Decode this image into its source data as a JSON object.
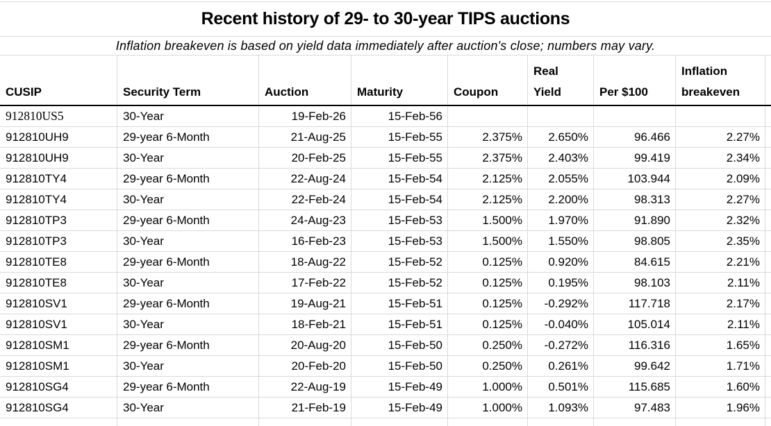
{
  "colors": {
    "background": "#ffffff",
    "text": "#000000",
    "gridline": "#d9d9d9",
    "header_rule": "#000000"
  },
  "chart_data": {
    "type": "table",
    "title": "Recent history of 29- to 30-year TIPS auctions",
    "subtitle": "Inflation breakeven is based on yield data immediately after auction's close; numbers may vary.",
    "columns": [
      {
        "id": "cusip",
        "label": "CUSIP",
        "align": "left"
      },
      {
        "id": "security-term",
        "label": "Security Term",
        "align": "left"
      },
      {
        "id": "auction",
        "label": "Auction",
        "align": "left",
        "cell_align": "right"
      },
      {
        "id": "maturity",
        "label": "Maturity",
        "align": "left",
        "cell_align": "right"
      },
      {
        "id": "coupon",
        "label": "Coupon",
        "align": "left",
        "cell_align": "right"
      },
      {
        "id": "real-yield",
        "label": "Real Yield",
        "label_lines": [
          "Real",
          "Yield"
        ],
        "align": "left",
        "cell_align": "right"
      },
      {
        "id": "per-100",
        "label": "Per $100",
        "align": "left",
        "cell_align": "right"
      },
      {
        "id": "inflation-breakeven",
        "label": "Inflation breakeven",
        "label_lines": [
          "Inflation",
          "breakeven"
        ],
        "align": "left",
        "cell_align": "right"
      }
    ],
    "rows": [
      [
        "912810US5",
        "30-Year",
        "19-Feb-26",
        "15-Feb-56",
        "",
        "",
        "",
        ""
      ],
      [
        "912810UH9",
        "29-year 6-Month",
        "21-Aug-25",
        "15-Feb-55",
        "2.375%",
        "2.650%",
        "96.466",
        "2.27%"
      ],
      [
        "912810UH9",
        "30-Year",
        "20-Feb-25",
        "15-Feb-55",
        "2.375%",
        "2.403%",
        "99.419",
        "2.34%"
      ],
      [
        "912810TY4",
        "29-year 6-Month",
        "22-Aug-24",
        "15-Feb-54",
        "2.125%",
        "2.055%",
        "103.944",
        "2.09%"
      ],
      [
        "912810TY4",
        "30-Year",
        "22-Feb-24",
        "15-Feb-54",
        "2.125%",
        "2.200%",
        "98.313",
        "2.27%"
      ],
      [
        "912810TP3",
        "29-year 6-Month",
        "24-Aug-23",
        "15-Feb-53",
        "1.500%",
        "1.970%",
        "91.890",
        "2.32%"
      ],
      [
        "912810TP3",
        "30-Year",
        "16-Feb-23",
        "15-Feb-53",
        "1.500%",
        "1.550%",
        "98.805",
        "2.35%"
      ],
      [
        "912810TE8",
        "29-year 6-Month",
        "18-Aug-22",
        "15-Feb-52",
        "0.125%",
        "0.920%",
        "84.615",
        "2.21%"
      ],
      [
        "912810TE8",
        "30-Year",
        "17-Feb-22",
        "15-Feb-52",
        "0.125%",
        "0.195%",
        "98.103",
        "2.11%"
      ],
      [
        "912810SV1",
        "29-year 6-Month",
        "19-Aug-21",
        "15-Feb-51",
        "0.125%",
        "-0.292%",
        "117.718",
        "2.17%"
      ],
      [
        "912810SV1",
        "30-Year",
        "18-Feb-21",
        "15-Feb-51",
        "0.125%",
        "-0.040%",
        "105.014",
        "2.11%"
      ],
      [
        "912810SM1",
        "29-year 6-Month",
        "20-Aug-20",
        "15-Feb-50",
        "0.250%",
        "-0.272%",
        "116.316",
        "1.65%"
      ],
      [
        "912810SM1",
        "30-Year",
        "20-Feb-20",
        "15-Feb-50",
        "0.250%",
        "0.261%",
        "99.642",
        "1.71%"
      ],
      [
        "912810SG4",
        "29-year 6-Month",
        "22-Aug-19",
        "15-Feb-49",
        "1.000%",
        "0.501%",
        "115.685",
        "1.60%"
      ],
      [
        "912810SG4",
        "30-Year",
        "21-Feb-19",
        "15-Feb-49",
        "1.000%",
        "1.093%",
        "97.483",
        "1.96%"
      ]
    ]
  }
}
